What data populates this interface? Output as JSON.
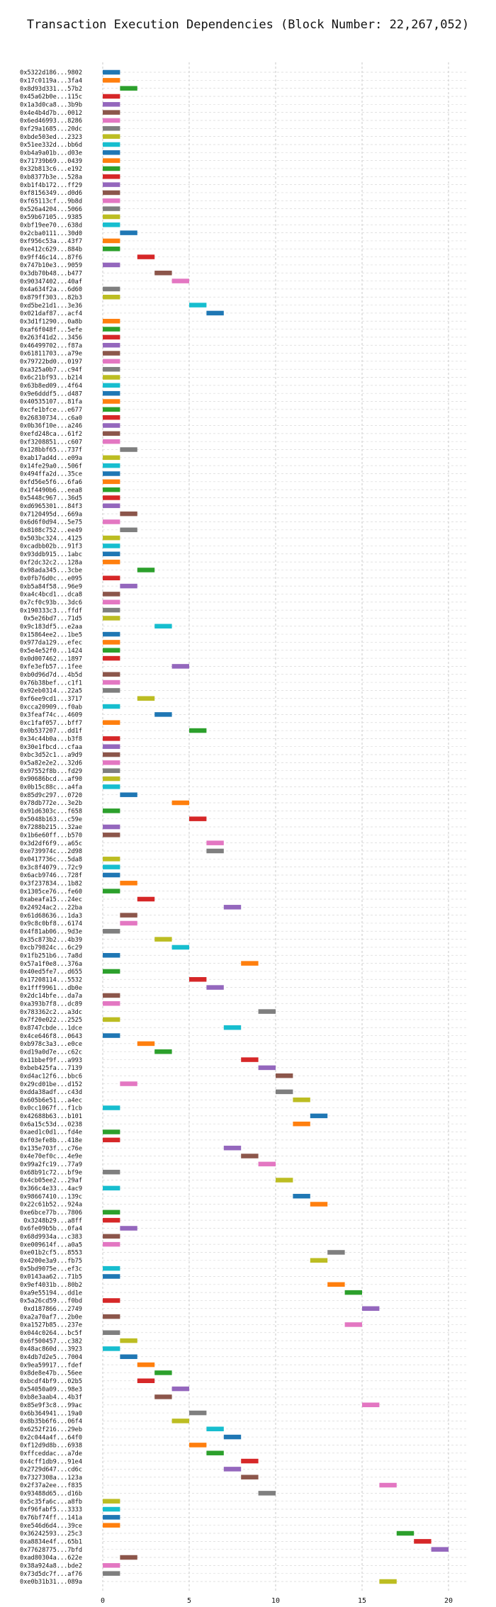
{
  "chart_data": {
    "type": "gantt",
    "title": "Transaction Execution Dependencies (Block Number: 22,267,052)",
    "xlim": [
      -4,
      21
    ],
    "x_ticks": [
      0,
      5,
      10,
      15,
      20
    ],
    "grid": true,
    "palette": [
      "#1f77b4",
      "#ff7f0e",
      "#2ca02c",
      "#d62728",
      "#9467bd",
      "#8c564b",
      "#e377c2",
      "#7f7f7f",
      "#bcbd22",
      "#17becf"
    ],
    "bar_width": 1,
    "transactions": [
      {
        "label": "0x5322d186...9802",
        "start": 0
      },
      {
        "label": "0x17c0119a...3fa4",
        "start": 0
      },
      {
        "label": "0x8d93d331...57b2",
        "start": 1
      },
      {
        "label": "0x45a62b0e...115c",
        "start": 0
      },
      {
        "label": "0x1a3d0ca8...3b9b",
        "start": 0
      },
      {
        "label": "0x4e4b4d7b...0012",
        "start": 0
      },
      {
        "label": "0x6ed46993...8286",
        "start": 0
      },
      {
        "label": "0xf29a1685...20dc",
        "start": 0
      },
      {
        "label": "0xbde503ed...2323",
        "start": 0
      },
      {
        "label": "0x51ee332d...bb6d",
        "start": 0
      },
      {
        "label": "0xb4a9a01b...d03e",
        "start": 0
      },
      {
        "label": "0x71739b69...0439",
        "start": 0
      },
      {
        "label": "0x32b813c6...e192",
        "start": 0
      },
      {
        "label": "0xb8377b3e...528a",
        "start": 0
      },
      {
        "label": "0xb1f4b172...ff29",
        "start": 0
      },
      {
        "label": "0xf8156349...d0d6",
        "start": 0
      },
      {
        "label": "0xf65113cf...9b8d",
        "start": 0
      },
      {
        "label": "0x526a4204...5066",
        "start": 0
      },
      {
        "label": "0x59b67105...9385",
        "start": 0
      },
      {
        "label": "0xbf19ee70...638d",
        "start": 0
      },
      {
        "label": "0x2cba0111...30d0",
        "start": 1
      },
      {
        "label": "0xf956c53a...43f7",
        "start": 0
      },
      {
        "label": "0xe412c629...884b",
        "start": 0
      },
      {
        "label": "0x9ff46c14...87f6",
        "start": 2
      },
      {
        "label": "0x747b10e3...9059",
        "start": 0
      },
      {
        "label": "0x3db70b48...b477",
        "start": 3
      },
      {
        "label": "0x90347402...40af",
        "start": 4
      },
      {
        "label": "0x4a634f2a...6d60",
        "start": 0
      },
      {
        "label": "0x879ff303...82b3",
        "start": 0
      },
      {
        "label": "0xd5be21d1...3e36",
        "start": 5
      },
      {
        "label": "0x021daf87...acf4",
        "start": 6
      },
      {
        "label": "0x3d1f1290...0a8b",
        "start": 0
      },
      {
        "label": "0xaf6f048f...5efe",
        "start": 0
      },
      {
        "label": "0x263f41d2...3456",
        "start": 0
      },
      {
        "label": "0x46499702...f87a",
        "start": 0
      },
      {
        "label": "0x61811703...a79e",
        "start": 0
      },
      {
        "label": "0x79722bd0...0197",
        "start": 0
      },
      {
        "label": "0xa325a0b7...c94f",
        "start": 0
      },
      {
        "label": "0x6c21bf93...b214",
        "start": 0
      },
      {
        "label": "0x63b8ed09...4f64",
        "start": 0
      },
      {
        "label": "0x9e6dddf5...d487",
        "start": 0
      },
      {
        "label": "0x40535107...81fa",
        "start": 0
      },
      {
        "label": "0xcfe1bfce...e677",
        "start": 0
      },
      {
        "label": "0x26830734...c6a0",
        "start": 0
      },
      {
        "label": "0x0b36f10e...a246",
        "start": 0
      },
      {
        "label": "0xefd248ca...61f2",
        "start": 0
      },
      {
        "label": "0xf3208851...c607",
        "start": 0
      },
      {
        "label": "0x128bbf65...737f",
        "start": 1
      },
      {
        "label": "0xab17ad4d...e09a",
        "start": 0
      },
      {
        "label": "0x14fe29a0...506f",
        "start": 0
      },
      {
        "label": "0x494ffa2d...35ce",
        "start": 0
      },
      {
        "label": "0xfd56e5f6...6fa6",
        "start": 0
      },
      {
        "label": "0x1f4490b6...eea8",
        "start": 0
      },
      {
        "label": "0x5448c967...36d5",
        "start": 0
      },
      {
        "label": "0xd6965301...84f3",
        "start": 0
      },
      {
        "label": "0x7120495d...669a",
        "start": 1
      },
      {
        "label": "0x6d6f0d94...5e75",
        "start": 0
      },
      {
        "label": "0x8108c752...ee49",
        "start": 1
      },
      {
        "label": "0x503bc324...4125",
        "start": 0
      },
      {
        "label": "0xcadbb02b...91f3",
        "start": 0
      },
      {
        "label": "0x93ddb915...1abc",
        "start": 0
      },
      {
        "label": "0xf2dc32c2...128a",
        "start": 0
      },
      {
        "label": "0x98ada345...3cbe",
        "start": 2
      },
      {
        "label": "0x0fb76d0c...e095",
        "start": 0
      },
      {
        "label": "0xb5a84f58...96e9",
        "start": 1
      },
      {
        "label": "0xa4c4bcd1...dca8",
        "start": 0
      },
      {
        "label": "0x7cf0c93b...3dc6",
        "start": 0
      },
      {
        "label": "0x190333c3...ffdf",
        "start": 0
      },
      {
        "label": "0x5e26bd7...71d5",
        "start": 0
      },
      {
        "label": "0x9c183df5...e2aa",
        "start": 3
      },
      {
        "label": "0x15864ee2...1be5",
        "start": 0
      },
      {
        "label": "0x977da129...efec",
        "start": 0
      },
      {
        "label": "0x5e4e52f0...1424",
        "start": 0
      },
      {
        "label": "0x0d007462...1897",
        "start": 0
      },
      {
        "label": "0xfe3efb57...1fee",
        "start": 4
      },
      {
        "label": "0xb0d96d7d...4b5d",
        "start": 0
      },
      {
        "label": "0x76b38bef...c1f1",
        "start": 0
      },
      {
        "label": "0x92eb0314...22a5",
        "start": 0
      },
      {
        "label": "0xf6ee9cd1...3717",
        "start": 2
      },
      {
        "label": "0xcca20909...f0ab",
        "start": 0
      },
      {
        "label": "0x3feaf74c...4609",
        "start": 3
      },
      {
        "label": "0xc1faf057...bff7",
        "start": 0
      },
      {
        "label": "0x0b537207...dd1f",
        "start": 5
      },
      {
        "label": "0x34c44b0a...b3f8",
        "start": 0
      },
      {
        "label": "0x30e1fbcd...cfaa",
        "start": 0
      },
      {
        "label": "0xbc3d52c1...a9d9",
        "start": 0
      },
      {
        "label": "0x5a82e2e2...32d6",
        "start": 0
      },
      {
        "label": "0x97552f8b...fd29",
        "start": 0
      },
      {
        "label": "0x90686bcd...af90",
        "start": 0
      },
      {
        "label": "0x0b15c88c...a4fa",
        "start": 0
      },
      {
        "label": "0x85d9c297...0720",
        "start": 1
      },
      {
        "label": "0x78db772e...3e2b",
        "start": 4
      },
      {
        "label": "0x91d6303c...f658",
        "start": 0
      },
      {
        "label": "0x5048b163...c59e",
        "start": 5
      },
      {
        "label": "0x7288b215...32ae",
        "start": 0
      },
      {
        "label": "0x1b6e60ff...b570",
        "start": 0
      },
      {
        "label": "0x3d2df6f9...a65c",
        "start": 6
      },
      {
        "label": "0xe739974c...2d98",
        "start": 6
      },
      {
        "label": "0x0417736c...5da8",
        "start": 0
      },
      {
        "label": "0x3c8f4079...72c9",
        "start": 0
      },
      {
        "label": "0x6acb9746...728f",
        "start": 0
      },
      {
        "label": "0x3f237834...1b82",
        "start": 1
      },
      {
        "label": "0x1305ce76...fe60",
        "start": 0
      },
      {
        "label": "0xabeafa15...24ec",
        "start": 2
      },
      {
        "label": "0x24924ac2...22ba",
        "start": 7
      },
      {
        "label": "0x61d68636...1da3",
        "start": 1
      },
      {
        "label": "0x9c8c0bf8...6174",
        "start": 1
      },
      {
        "label": "0x4f81ab06...9d3e",
        "start": 0
      },
      {
        "label": "0x35c873b2...4b39",
        "start": 3
      },
      {
        "label": "0xcb79824c...6c29",
        "start": 4
      },
      {
        "label": "0x1fb251b6...7a8d",
        "start": 0
      },
      {
        "label": "0x57a1f0e8...376a",
        "start": 8
      },
      {
        "label": "0x40ed5fe7...d655",
        "start": 0
      },
      {
        "label": "0x17208114...5532",
        "start": 5
      },
      {
        "label": "0x1fff9961...db0e",
        "start": 6
      },
      {
        "label": "0x2dc14bfe...da7a",
        "start": 0
      },
      {
        "label": "0xa393b7f8...dc89",
        "start": 0
      },
      {
        "label": "0x783362c2...a3dc",
        "start": 9
      },
      {
        "label": "0x7f20e022...2525",
        "start": 0
      },
      {
        "label": "0x8747cbde...1dce",
        "start": 7
      },
      {
        "label": "0x4ce646f8...0643",
        "start": 0
      },
      {
        "label": "0xb978c3a3...e0ce",
        "start": 2
      },
      {
        "label": "0xd19a0d7e...c62c",
        "start": 3
      },
      {
        "label": "0x11bbef9f...a993",
        "start": 8
      },
      {
        "label": "0xbeb425fa...7139",
        "start": 9
      },
      {
        "label": "0xd4ac12f6...bbc6",
        "start": 10
      },
      {
        "label": "0x29cd01be...d152",
        "start": 1
      },
      {
        "label": "0xdda38adf...c43d",
        "start": 10
      },
      {
        "label": "0x605b6e51...a4ec",
        "start": 11
      },
      {
        "label": "0x0cc1067f...f1cb",
        "start": 0
      },
      {
        "label": "0x42688b63...b101",
        "start": 12
      },
      {
        "label": "0x6a15c53d...0238",
        "start": 11
      },
      {
        "label": "0xaed1c0d1...fd4e",
        "start": 0
      },
      {
        "label": "0xf03efe8b...418e",
        "start": 0
      },
      {
        "label": "0x135e703f...c76e",
        "start": 7
      },
      {
        "label": "0x4e70ef0c...4e9e",
        "start": 8
      },
      {
        "label": "0x99a2fc19...77a9",
        "start": 9
      },
      {
        "label": "0x68b91c72...bf9e",
        "start": 0
      },
      {
        "label": "0x4cb05ee2...29af",
        "start": 10
      },
      {
        "label": "0x366c4e33...4ac9",
        "start": 0
      },
      {
        "label": "0x98667410...139c",
        "start": 11
      },
      {
        "label": "0x22c61b52...924a",
        "start": 12
      },
      {
        "label": "0xe6bce77b...7806",
        "start": 0
      },
      {
        "label": "0x3248b29...a8ff",
        "start": 0
      },
      {
        "label": "0x6fe09b5b...0fa4",
        "start": 1
      },
      {
        "label": "0x68d9934a...c383",
        "start": 0
      },
      {
        "label": "0xe009614f...a0a5",
        "start": 0
      },
      {
        "label": "0xe01b2cf5...8553",
        "start": 13
      },
      {
        "label": "0x4200e3a9...fb75",
        "start": 12
      },
      {
        "label": "0x5bd9075e...ef3c",
        "start": 0
      },
      {
        "label": "0x0143aa62...71b5",
        "start": 0
      },
      {
        "label": "0x9ef4031b...80b2",
        "start": 13
      },
      {
        "label": "0xa9e55194...dd1e",
        "start": 14
      },
      {
        "label": "0x5a26cd59...f0bd",
        "start": 0
      },
      {
        "label": "0xd187866...2749",
        "start": 15
      },
      {
        "label": "0xa2a70af7...2b0e",
        "start": 0
      },
      {
        "label": "0xa1527b85...237e",
        "start": 14
      },
      {
        "label": "0x044c0264...bc5f",
        "start": 0
      },
      {
        "label": "0x6f500457...c382",
        "start": 1
      },
      {
        "label": "0x48ac860d...3923",
        "start": 0
      },
      {
        "label": "0x4db7d2e5...7004",
        "start": 1
      },
      {
        "label": "0x9ea59917...fdef",
        "start": 2
      },
      {
        "label": "0x8de8e47b...56ee",
        "start": 3
      },
      {
        "label": "0xbcdf4bf9...02b5",
        "start": 2
      },
      {
        "label": "0x54050a09...98e3",
        "start": 4
      },
      {
        "label": "0xb8e3aab4...4b3f",
        "start": 3
      },
      {
        "label": "0x85e9f3c8...99ac",
        "start": 15
      },
      {
        "label": "0x6b364941...19a0",
        "start": 5
      },
      {
        "label": "0x8b35b6f6...06f4",
        "start": 4
      },
      {
        "label": "0x6252f216...29eb",
        "start": 6
      },
      {
        "label": "0x2c044a4f...64f0",
        "start": 7
      },
      {
        "label": "0xf12d9d8b...6938",
        "start": 5
      },
      {
        "label": "0xffceddac...a7de",
        "start": 6
      },
      {
        "label": "0x4cff1db9...91e4",
        "start": 8
      },
      {
        "label": "0x2729d647...cd6c",
        "start": 7
      },
      {
        "label": "0x7327308a...123a",
        "start": 8
      },
      {
        "label": "0x2f37a2ee...f835",
        "start": 16
      },
      {
        "label": "0x93488d65...d16b",
        "start": 9
      },
      {
        "label": "0x5c35fa6c...a8fb",
        "start": 0
      },
      {
        "label": "0xf96fabf5...3333",
        "start": 0
      },
      {
        "label": "0x76bf74ff...141a",
        "start": 0
      },
      {
        "label": "0xe546d6d4...39ce",
        "start": 0
      },
      {
        "label": "0x36242593...25c3",
        "start": 17
      },
      {
        "label": "0xa8834e4f...65b1",
        "start": 18
      },
      {
        "label": "0x77628775...7bfd",
        "start": 19
      },
      {
        "label": "0xad80304a...622e",
        "start": 1
      },
      {
        "label": "0x38a924a8...bde2",
        "start": 0
      },
      {
        "label": "0x73d5dc7f...af76",
        "start": 0
      },
      {
        "label": "0xe0b31b31...089a",
        "start": 16
      }
    ]
  }
}
